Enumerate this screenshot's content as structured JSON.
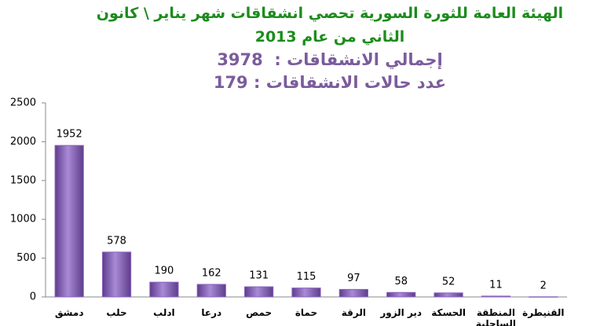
{
  "chart_data": {
    "type": "bar",
    "title": "الهيئة العامة للثورة السورية تحصي انشقاقات شهر يناير \\ كانون الثاني من عام 2013",
    "subtitles": [
      "إجمالي الانشقاقات :  3978",
      "عدد حالات الانشقاقات : 179"
    ],
    "categories": [
      "دمشق",
      "حلب",
      "ادلب",
      "درعا",
      "حمص",
      "حماة",
      "الرقة",
      "دير الزور",
      "الحسكة",
      "المنطقة الساحلية",
      "القنيطرة"
    ],
    "values": [
      1952,
      578,
      190,
      162,
      131,
      115,
      97,
      58,
      52,
      11,
      2
    ],
    "color": "#8b63bd",
    "ylim": [
      0,
      2500
    ],
    "yticks": [
      0,
      500,
      1000,
      1500,
      2000,
      2500
    ],
    "grid": false
  }
}
